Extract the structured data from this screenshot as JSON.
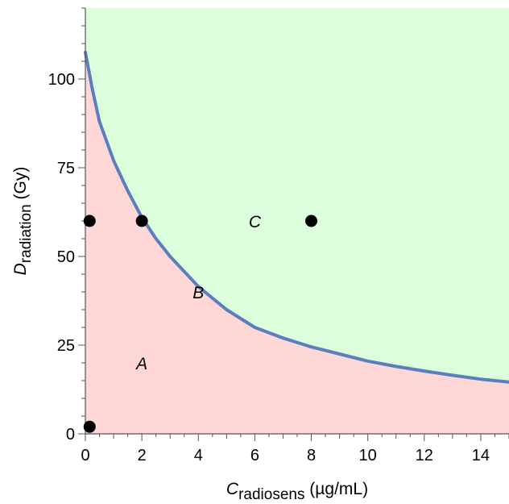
{
  "chart_data": {
    "type": "line",
    "xlabel": {
      "main": "C",
      "sub": "radiosens",
      "unit": " (µg/mL)"
    },
    "ylabel": {
      "main": "D",
      "sub": "radiation",
      "unit": " (Gy)"
    },
    "xlim": [
      0,
      15
    ],
    "ylim": [
      0,
      120
    ],
    "xticks": [
      0,
      2,
      4,
      6,
      8,
      10,
      12,
      14
    ],
    "yticks": [
      0,
      25,
      50,
      75,
      100
    ],
    "grid": false,
    "curve": {
      "x": [
        0,
        0.25,
        0.5,
        1,
        1.5,
        2,
        2.5,
        3,
        4,
        5,
        6,
        7,
        8,
        9,
        10,
        11,
        12,
        13,
        14,
        15
      ],
      "y": [
        107.5,
        97,
        88,
        77,
        68.5,
        61,
        55,
        50,
        41.5,
        35,
        30,
        27,
        24.5,
        22.5,
        20.5,
        19,
        17.7,
        16.5,
        15.4,
        14.6
      ],
      "color": "#5b7fbd"
    },
    "regions": [
      {
        "label": "A",
        "x": 2,
        "y": 20,
        "color": "#ffd7d7"
      },
      {
        "label": "B",
        "x": 4,
        "y": 40
      },
      {
        "label": "C",
        "x": 6,
        "y": 60,
        "color": "#dcfedc"
      }
    ],
    "points": [
      {
        "x": 0.15,
        "y": 60
      },
      {
        "x": 2,
        "y": 60
      },
      {
        "x": 8,
        "y": 60
      },
      {
        "x": 0.15,
        "y": 2
      }
    ]
  }
}
